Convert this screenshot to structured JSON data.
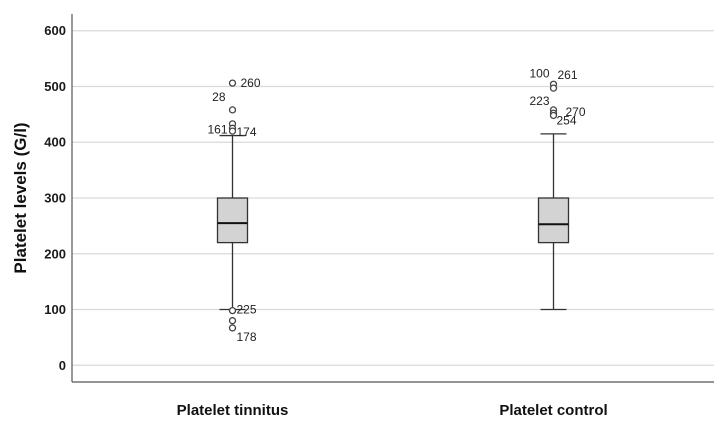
{
  "chart_data": {
    "type": "box",
    "ylabel": "Platelet levels (G/l)",
    "xlabel": "",
    "ylim": [
      -30,
      630
    ],
    "yticks": [
      0,
      100,
      200,
      300,
      400,
      500,
      600
    ],
    "grid": true,
    "categories": [
      "Platelet tinnitus",
      "Platelet control"
    ],
    "boxes": [
      {
        "name": "Platelet tinnitus",
        "whisker_low": 100,
        "q1": 220,
        "median": 255,
        "q3": 300,
        "whisker_high": 412,
        "outliers": [
          {
            "value": 506,
            "label": "260"
          },
          {
            "value": 458,
            "label": "28"
          },
          {
            "value": 433,
            "label": ""
          },
          {
            "value": 425,
            "label": "161"
          },
          {
            "value": 420,
            "label": "174"
          },
          {
            "value": 98,
            "label": "225"
          },
          {
            "value": 80,
            "label": ""
          },
          {
            "value": 67,
            "label": "178"
          }
        ]
      },
      {
        "name": "Platelet control",
        "whisker_low": 100,
        "q1": 220,
        "median": 253,
        "q3": 300,
        "whisker_high": 415,
        "outliers": [
          {
            "value": 504,
            "label": "100"
          },
          {
            "value": 497,
            "label": "261"
          },
          {
            "value": 458,
            "label": "223"
          },
          {
            "value": 452,
            "label": "270"
          },
          {
            "value": 448,
            "label": "254"
          }
        ]
      }
    ],
    "colors": {
      "box_fill": "#d3d3d3",
      "stroke": "#333333",
      "grid": "#d9d9d9",
      "axis": "#555555"
    }
  }
}
